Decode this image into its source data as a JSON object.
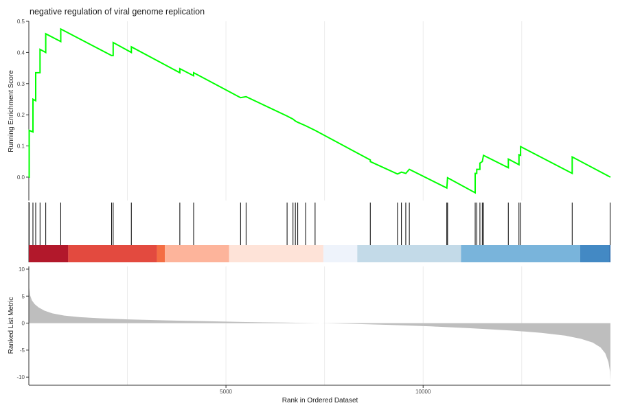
{
  "chart_data": {
    "type": "line",
    "title": "negative regulation of viral genome replication",
    "xlabel": "Rank in Ordered Dataset",
    "x_ticks": [
      5000,
      10000
    ],
    "x_tick_labels": [
      "5000",
      "10000"
    ],
    "xlim": [
      1,
      14750
    ],
    "gridlines": [
      2500,
      5000,
      7500,
      10000,
      12500
    ],
    "es_panel": {
      "ylabel": "Running Enrichment Score",
      "ylim": [
        -0.075,
        0.5
      ],
      "y_ticks": [
        0.0,
        0.1,
        0.2,
        0.3,
        0.4,
        0.5
      ],
      "y_tick_labels": [
        "0.0",
        "0.1",
        "0.2",
        "0.3",
        "0.4",
        "0.5"
      ],
      "line_color": "#00FF00",
      "hit_ranks": [
        10,
        105,
        175,
        285,
        430,
        810,
        2100,
        2140,
        2600,
        3830,
        4180,
        5370,
        5510,
        6550,
        6700,
        6760,
        6820,
        7020,
        7260,
        8660,
        9350,
        9450,
        9560,
        9650,
        10600,
        10620,
        11320,
        11360,
        11440,
        11500,
        11530,
        12160,
        12430,
        12470,
        13780,
        14750
      ],
      "es_path": [
        [
          0,
          0.0
        ],
        [
          10,
          0.0
        ],
        [
          10,
          0.15
        ],
        [
          105,
          0.145
        ],
        [
          105,
          0.25
        ],
        [
          175,
          0.245
        ],
        [
          175,
          0.335
        ],
        [
          285,
          0.335
        ],
        [
          285,
          0.41
        ],
        [
          430,
          0.4
        ],
        [
          430,
          0.46
        ],
        [
          810,
          0.435
        ],
        [
          810,
          0.475
        ],
        [
          2100,
          0.39
        ],
        [
          2140,
          0.39
        ],
        [
          2140,
          0.432
        ],
        [
          2600,
          0.4
        ],
        [
          2600,
          0.418
        ],
        [
          3830,
          0.335
        ],
        [
          3830,
          0.348
        ],
        [
          4180,
          0.325
        ],
        [
          4180,
          0.335
        ],
        [
          5370,
          0.255
        ],
        [
          5510,
          0.258
        ],
        [
          6550,
          0.196
        ],
        [
          6700,
          0.186
        ],
        [
          6760,
          0.18
        ],
        [
          6820,
          0.176
        ],
        [
          7020,
          0.165
        ],
        [
          7260,
          0.15
        ],
        [
          8660,
          0.055
        ],
        [
          8660,
          0.05
        ],
        [
          9350,
          0.01
        ],
        [
          9450,
          0.016
        ],
        [
          9560,
          0.012
        ],
        [
          9650,
          0.025
        ],
        [
          10600,
          -0.035
        ],
        [
          10620,
          -0.002
        ],
        [
          11320,
          -0.05
        ],
        [
          11320,
          0.012
        ],
        [
          11360,
          0.012
        ],
        [
          11360,
          0.025
        ],
        [
          11440,
          0.025
        ],
        [
          11440,
          0.045
        ],
        [
          11500,
          0.05
        ],
        [
          11530,
          0.07
        ],
        [
          12160,
          0.03
        ],
        [
          12160,
          0.058
        ],
        [
          12430,
          0.04
        ],
        [
          12430,
          0.072
        ],
        [
          12470,
          0.07
        ],
        [
          12470,
          0.098
        ],
        [
          13780,
          0.012
        ],
        [
          13780,
          0.065
        ],
        [
          14750,
          0.0
        ]
      ]
    },
    "color_bar": [
      {
        "from": 0,
        "to": 1000,
        "color": "#B2182B"
      },
      {
        "from": 1000,
        "to": 3250,
        "color": "#E34A3F"
      },
      {
        "from": 3250,
        "to": 3450,
        "color": "#F46D43"
      },
      {
        "from": 3450,
        "to": 5080,
        "color": "#FDB49B"
      },
      {
        "from": 5080,
        "to": 7470,
        "color": "#FEE3D8"
      },
      {
        "from": 7470,
        "to": 8330,
        "color": "#EEF3FB"
      },
      {
        "from": 8330,
        "to": 10960,
        "color": "#C3DAE8"
      },
      {
        "from": 10960,
        "to": 13980,
        "color": "#79B4DB"
      },
      {
        "from": 13980,
        "to": 14720,
        "color": "#4389C4"
      },
      {
        "from": 14720,
        "to": 14750,
        "color": "#2166AC"
      }
    ],
    "metric_panel": {
      "ylabel": "Ranked List Metric",
      "ylim": [
        -11.5,
        10.5
      ],
      "y_ticks": [
        10,
        5,
        0,
        -5,
        -10
      ],
      "y_tick_labels": [
        "10",
        "5",
        "0",
        "-5",
        "-10"
      ],
      "fill_color": "#BEBEBE",
      "curve": [
        [
          0,
          7.2
        ],
        [
          30,
          5.2
        ],
        [
          80,
          4.2
        ],
        [
          150,
          3.5
        ],
        [
          250,
          2.9
        ],
        [
          400,
          2.3
        ],
        [
          600,
          1.8
        ],
        [
          900,
          1.4
        ],
        [
          1300,
          1.1
        ],
        [
          1800,
          0.9
        ],
        [
          2500,
          0.7
        ],
        [
          3500,
          0.5
        ],
        [
          4500,
          0.35
        ],
        [
          5500,
          0.2
        ],
        [
          6500,
          0.1
        ],
        [
          7400,
          0.0
        ],
        [
          8300,
          -0.15
        ],
        [
          9200,
          -0.35
        ],
        [
          10200,
          -0.6
        ],
        [
          11200,
          -0.95
        ],
        [
          12200,
          -1.35
        ],
        [
          13000,
          -1.8
        ],
        [
          13600,
          -2.3
        ],
        [
          14000,
          -2.9
        ],
        [
          14300,
          -3.6
        ],
        [
          14500,
          -4.5
        ],
        [
          14620,
          -5.6
        ],
        [
          14700,
          -7.2
        ],
        [
          14740,
          -9.0
        ],
        [
          14750,
          -10.8
        ]
      ]
    }
  }
}
